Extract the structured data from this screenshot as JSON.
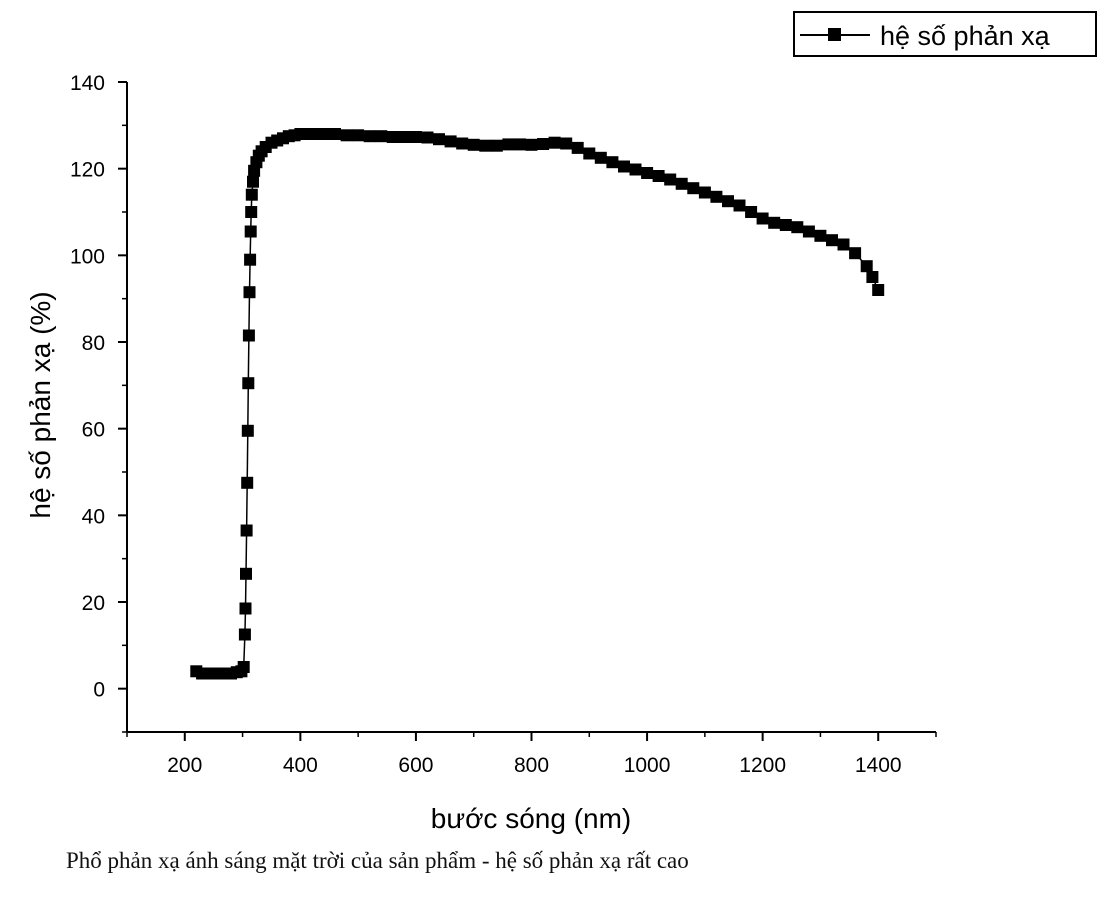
{
  "chart_data": {
    "type": "scatter",
    "title": "",
    "xlabel": "bước sóng (nm)",
    "ylabel": "hệ số phản xạ (%)",
    "xlim": [
      100,
      1500
    ],
    "ylim": [
      -10,
      140
    ],
    "xticks": [
      200,
      400,
      600,
      800,
      1000,
      1200,
      1400
    ],
    "yticks": [
      0,
      20,
      40,
      60,
      80,
      100,
      120,
      140
    ],
    "legend": {
      "position": "top-right",
      "entries": [
        "hệ số phản xạ"
      ]
    },
    "marker": "square",
    "line": "connected",
    "color": "#000000",
    "grid": false,
    "series": [
      {
        "name": "hệ số phản xạ",
        "x": [
          220,
          230,
          240,
          250,
          260,
          270,
          280,
          290,
          298,
          302,
          304,
          305,
          306,
          307,
          308,
          309,
          310,
          311,
          312,
          313,
          314,
          315,
          316,
          318,
          320,
          324,
          328,
          333,
          340,
          350,
          360,
          370,
          380,
          390,
          400,
          420,
          440,
          460,
          480,
          500,
          520,
          540,
          560,
          580,
          600,
          620,
          640,
          660,
          680,
          700,
          720,
          740,
          760,
          780,
          800,
          820,
          840,
          860,
          880,
          900,
          920,
          940,
          960,
          980,
          1000,
          1020,
          1040,
          1060,
          1080,
          1100,
          1120,
          1140,
          1160,
          1180,
          1200,
          1220,
          1240,
          1260,
          1280,
          1300,
          1320,
          1340,
          1360,
          1380,
          1390,
          1400
        ],
        "y": [
          4,
          3.5,
          3.5,
          3.5,
          3.5,
          3.5,
          3.5,
          3.8,
          4,
          5,
          12.5,
          18.5,
          26.5,
          36.5,
          47.5,
          59.5,
          70.5,
          81.5,
          91.5,
          99,
          105.5,
          110,
          114,
          117,
          119.5,
          121.5,
          123,
          124,
          125,
          126,
          126.5,
          127,
          127.5,
          127.7,
          128,
          128,
          128,
          128,
          127.7,
          127.7,
          127.5,
          127.5,
          127.3,
          127.3,
          127.3,
          127.2,
          126.8,
          126.3,
          125.8,
          125.5,
          125.3,
          125.3,
          125.6,
          125.6,
          125.5,
          125.7,
          126,
          125.8,
          124.8,
          123.5,
          122.5,
          121.5,
          120.5,
          119.8,
          119,
          118.3,
          117.5,
          116.5,
          115.5,
          114.5,
          113.5,
          112.5,
          111.5,
          110,
          108.5,
          107.5,
          107,
          106.5,
          105.5,
          104.5,
          103.5,
          102.5,
          100.5,
          97.5,
          95,
          92
        ]
      }
    ]
  },
  "caption": "Phổ phản xạ ánh sáng mặt trời của sản phẩm - hệ số phản xạ rất cao"
}
